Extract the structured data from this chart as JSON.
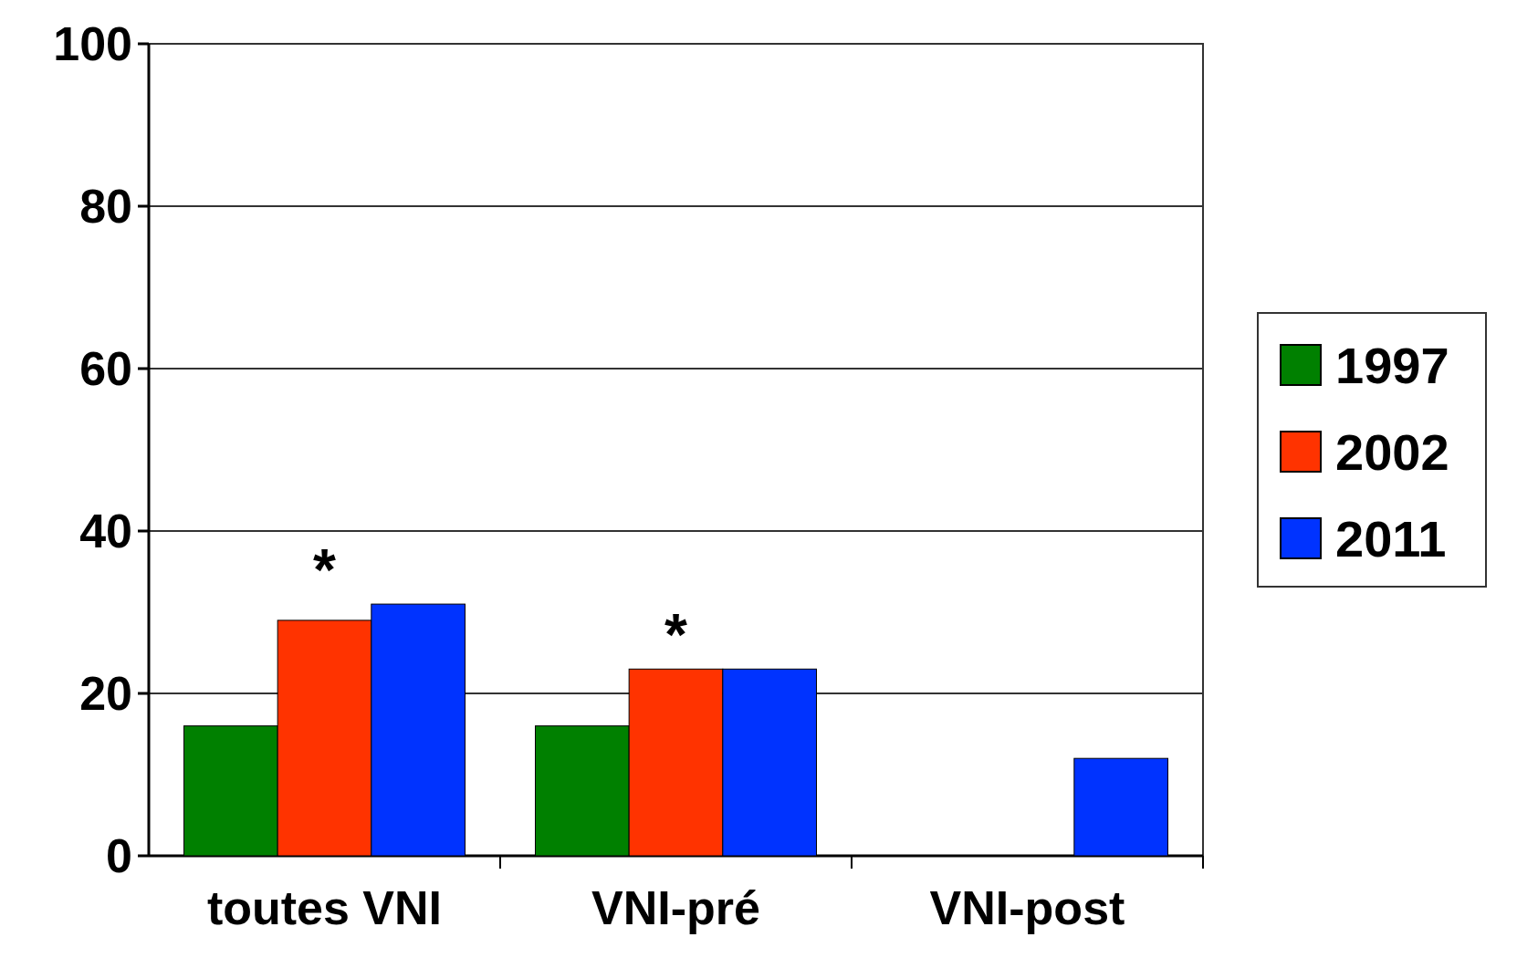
{
  "chart_data": {
    "type": "bar",
    "categories": [
      "toutes VNI",
      "VNI-pré",
      "VNI-post"
    ],
    "series": [
      {
        "name": "1997",
        "color": "#008000",
        "values": [
          16,
          16,
          null
        ]
      },
      {
        "name": "2002",
        "color": "#ff3300",
        "values": [
          29,
          23,
          null
        ]
      },
      {
        "name": "2011",
        "color": "#0033ff",
        "values": [
          31,
          23,
          12
        ]
      }
    ],
    "ylim": [
      0,
      100
    ],
    "yticks": [
      0,
      20,
      40,
      60,
      80,
      100
    ],
    "grid": "y",
    "legend": "right",
    "annotations": [
      "*",
      "*"
    ]
  }
}
